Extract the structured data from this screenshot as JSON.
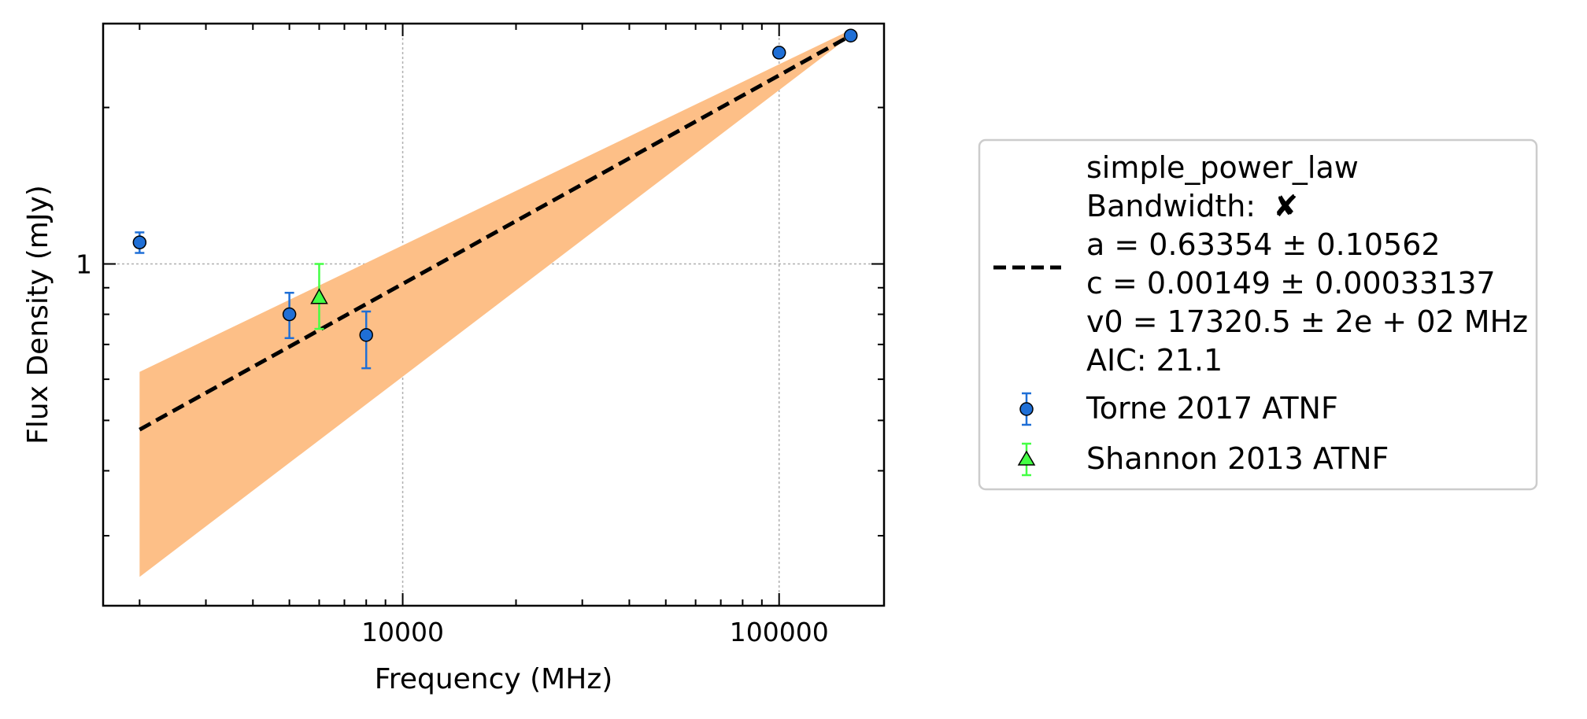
{
  "chart_data": {
    "type": "scatter",
    "title": "",
    "xlabel": "Frequency (MHz)",
    "ylabel": "Flux Density (mJy)",
    "xscale": "log",
    "yscale": "log",
    "xlim": [
      1600,
      190000
    ],
    "ylim": [
      0.22,
      2.9
    ],
    "grid": true,
    "legend_position": "outside-right",
    "x_ticks": [
      {
        "value": 10000,
        "label": "10000"
      },
      {
        "value": 100000,
        "label": "100000"
      }
    ],
    "y_ticks": [
      {
        "value": 1,
        "label": "1"
      }
    ],
    "fit": {
      "name": "simple_power_law",
      "bandwidth_label": "Bandwidth:",
      "bandwidth_mark": "✘",
      "params_text": [
        "a = 0.63354 ± 0.10562",
        "c = 0.00149 ± 0.00033137",
        "v0 = 17320.5 ± 2e + 02 MHz",
        "AIC: 21.1"
      ],
      "line_x": [
        2000,
        155000
      ],
      "line_y": [
        0.48,
        2.75
      ],
      "band_x": [
        2000,
        155000
      ],
      "band_lower": [
        0.25,
        2.75
      ],
      "band_upper": [
        0.62,
        2.82
      ],
      "line_color": "#000000",
      "band_color": "#fdbf87"
    },
    "series": [
      {
        "name": "Torne 2017 ATNF",
        "marker": "circle",
        "color": "#1f6fd6",
        "points": [
          {
            "x": 2000,
            "y": 1.1,
            "yerr_low": 0.05,
            "yerr_high": 0.05
          },
          {
            "x": 5000,
            "y": 0.8,
            "yerr_low": 0.08,
            "yerr_high": 0.08
          },
          {
            "x": 8000,
            "y": 0.73,
            "yerr_low": 0.1,
            "yerr_high": 0.08
          },
          {
            "x": 100000,
            "y": 2.55,
            "yerr_low": 0,
            "yerr_high": 0
          },
          {
            "x": 155000,
            "y": 2.75,
            "yerr_low": 0,
            "yerr_high": 0
          }
        ]
      },
      {
        "name": "Shannon 2013 ATNF",
        "marker": "triangle",
        "color": "#44ff44",
        "points": [
          {
            "x": 6000,
            "y": 0.86,
            "yerr_low": 0.11,
            "yerr_high": 0.14
          }
        ]
      }
    ]
  }
}
